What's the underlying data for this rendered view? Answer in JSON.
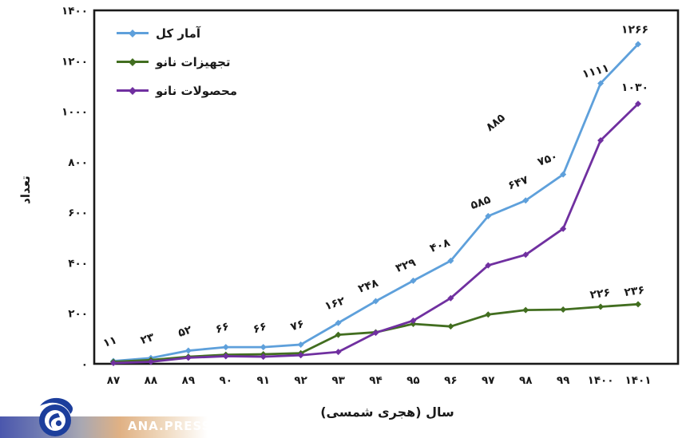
{
  "watermark": {
    "text": "ANA.PRESS",
    "logo_icon": "ana-logo",
    "logo_color": "#1c3e9c",
    "bar_gradient": [
      "#4b57ad",
      "#a9a8b2",
      "#e0b184"
    ]
  },
  "chart_data": {
    "type": "line",
    "title": "",
    "xlabel": "سال (هجری شمسی)",
    "ylabel": "تعداد",
    "grid": false,
    "legend_position": "top-left-inside",
    "ylim": [
      0,
      1400
    ],
    "y_ticks": [
      {
        "value": 0,
        "label": "۰"
      },
      {
        "value": 200,
        "label": "۲۰۰"
      },
      {
        "value": 400,
        "label": "۴۰۰"
      },
      {
        "value": 600,
        "label": "۶۰۰"
      },
      {
        "value": 800,
        "label": "۸۰۰"
      },
      {
        "value": 1000,
        "label": "۱۰۰۰"
      },
      {
        "value": 1200,
        "label": "۱۲۰۰"
      },
      {
        "value": 1400,
        "label": "۱۴۰۰"
      }
    ],
    "x_tick_values": [
      87,
      88,
      89,
      90,
      91,
      92,
      93,
      94,
      95,
      96,
      97,
      98,
      99,
      1400,
      1401
    ],
    "x_tick_labels": [
      "۸۷",
      "۸۸",
      "۸۹",
      "۹۰",
      "۹۱",
      "۹۲",
      "۹۳",
      "۹۴",
      "۹۵",
      "۹۶",
      "۹۷",
      "۹۸",
      "۹۹",
      "۱۴۰۰",
      "۱۴۰۱"
    ],
    "series": [
      {
        "name": "آمار کل",
        "color": "#5EA0DB",
        "values": [
          11,
          23,
          52,
          66,
          66,
          76,
          162,
          248,
          329,
          408,
          585,
          647,
          750,
          1111,
          1266
        ],
        "point_labels": [
          "۱۱",
          "۲۳",
          "۵۲",
          "۶۶",
          "۶۶",
          "۷۶",
          "۱۶۲",
          "۲۴۸",
          "۳۲۹",
          "۴۰۸",
          "۵۸۵",
          "۶۴۷",
          "۷۵۰",
          "۱۱۱۱",
          "۱۲۶۶"
        ]
      },
      {
        "name": "تجهیزات نانو",
        "color": "#426E20",
        "values": [
          8,
          15,
          28,
          36,
          38,
          42,
          115,
          125,
          158,
          148,
          195,
          213,
          215,
          226,
          236
        ],
        "point_labels": [
          null,
          null,
          null,
          null,
          null,
          null,
          null,
          null,
          null,
          null,
          null,
          null,
          null,
          "۲۲۶",
          "۲۳۶"
        ]
      },
      {
        "name": "محصولات نانو",
        "color": "#7030A0",
        "values": [
          3,
          8,
          24,
          30,
          28,
          34,
          47,
          123,
          171,
          260,
          390,
          432,
          535,
          885,
          1030
        ],
        "point_labels": [
          null,
          null,
          null,
          null,
          null,
          null,
          null,
          null,
          null,
          null,
          null,
          null,
          null,
          "۸۸۵",
          "۱۰۳۰"
        ]
      }
    ]
  }
}
